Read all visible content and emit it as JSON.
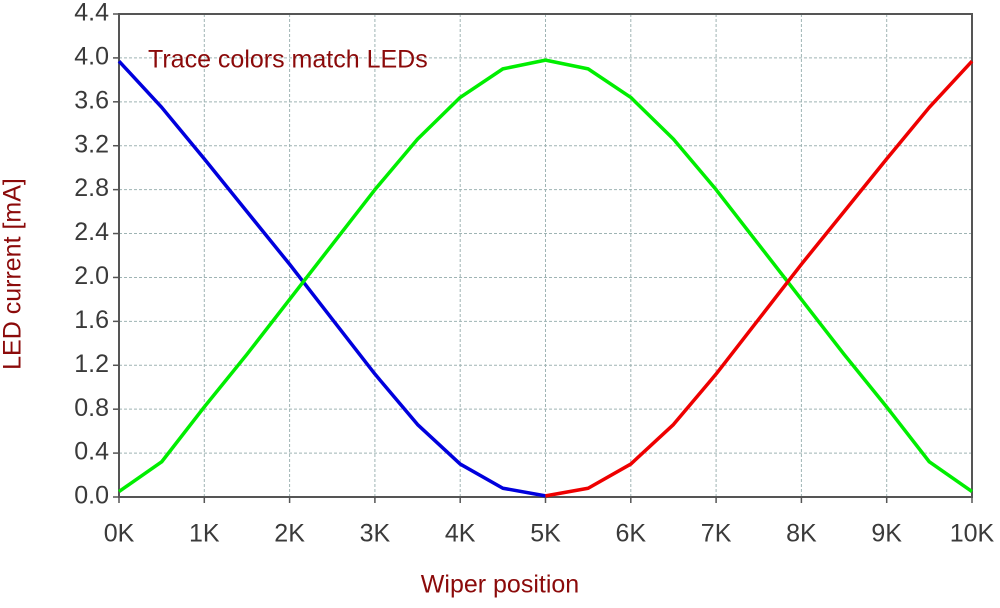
{
  "chart_data": {
    "type": "line",
    "x_label": "Wiper position",
    "y_label": "LED current [mA]",
    "annotation": "Trace colors match LEDs",
    "x": [
      0,
      500,
      1000,
      1500,
      2000,
      2500,
      3000,
      3500,
      4000,
      4500,
      5000,
      5500,
      6000,
      6500,
      7000,
      7500,
      8000,
      8500,
      9000,
      9500,
      10000
    ],
    "series": [
      {
        "color": "#0000dd",
        "values": [
          3.97,
          3.55,
          3.08,
          2.6,
          2.12,
          1.62,
          1.12,
          0.66,
          0.3,
          0.08,
          0.01,
          null,
          null,
          null,
          null,
          null,
          null,
          null,
          null,
          null,
          null
        ]
      },
      {
        "color": "#00ee00",
        "values": [
          0.05,
          0.32,
          0.82,
          1.3,
          1.8,
          2.3,
          2.8,
          3.26,
          3.64,
          3.9,
          3.98,
          3.9,
          3.64,
          3.26,
          2.8,
          2.3,
          1.8,
          1.3,
          0.82,
          0.32,
          0.05
        ]
      },
      {
        "color": "#ee0000",
        "values": [
          null,
          null,
          null,
          null,
          null,
          null,
          null,
          null,
          null,
          null,
          0.01,
          0.08,
          0.3,
          0.66,
          1.12,
          1.62,
          2.12,
          2.6,
          3.08,
          3.55,
          3.97
        ]
      }
    ],
    "xlim": [
      0,
      10000
    ],
    "xticks": [
      {
        "value": 0,
        "label": "0K"
      },
      {
        "value": 1000,
        "label": "1K"
      },
      {
        "value": 2000,
        "label": "2K"
      },
      {
        "value": 3000,
        "label": "3K"
      },
      {
        "value": 4000,
        "label": "4K"
      },
      {
        "value": 5000,
        "label": "5K"
      },
      {
        "value": 6000,
        "label": "6K"
      },
      {
        "value": 7000,
        "label": "7K"
      },
      {
        "value": 8000,
        "label": "8K"
      },
      {
        "value": 9000,
        "label": "9K"
      },
      {
        "value": 10000,
        "label": "10K"
      }
    ],
    "ylim": [
      0,
      4.4
    ],
    "yticks": [
      {
        "value": 0,
        "label": "0.0"
      },
      0.4,
      0.8,
      1.2,
      1.6,
      {
        "value": 2,
        "label": "2.0"
      },
      2.4,
      2.8,
      3.2,
      3.6,
      {
        "value": 4,
        "label": "4.0"
      },
      4.4
    ],
    "grid": true
  }
}
